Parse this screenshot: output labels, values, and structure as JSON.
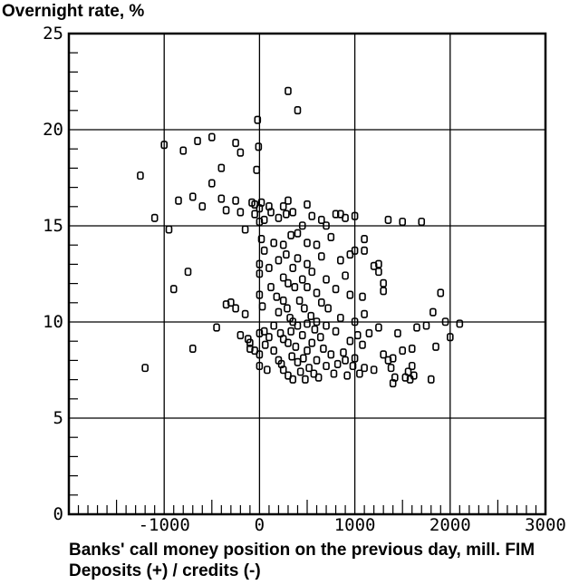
{
  "chart_data": {
    "type": "scatter",
    "ylabel": "Overnight rate, %",
    "xlabel_line1": "Banks' call money position on the previous day, mill. FIM",
    "xlabel_line2": "Deposits (+) / credits (-)",
    "xlim": [
      -2000,
      3000
    ],
    "ylim": [
      0,
      25
    ],
    "xticks": [
      -1000,
      0,
      1000,
      2000,
      3000
    ],
    "xtick_labels": [
      "-1000",
      "0",
      "1000",
      "2000",
      "3000"
    ],
    "yticks": [
      0,
      5,
      10,
      15,
      20,
      25
    ],
    "ytick_labels": [
      "0",
      "5",
      "10",
      "15",
      "20",
      "25"
    ],
    "grid": true,
    "marker": "rounded-square",
    "points": [
      [
        -1250,
        17.6
      ],
      [
        -1200,
        7.6
      ],
      [
        -1100,
        15.4
      ],
      [
        -1000,
        19.2
      ],
      [
        -950,
        14.8
      ],
      [
        -900,
        11.7
      ],
      [
        -850,
        16.3
      ],
      [
        -800,
        18.9
      ],
      [
        -750,
        12.6
      ],
      [
        -700,
        16.5
      ],
      [
        -700,
        8.6
      ],
      [
        -650,
        19.4
      ],
      [
        -600,
        16.0
      ],
      [
        -500,
        19.6
      ],
      [
        -500,
        17.2
      ],
      [
        -450,
        9.7
      ],
      [
        -400,
        18.0
      ],
      [
        -400,
        16.4
      ],
      [
        -350,
        15.8
      ],
      [
        -350,
        10.9
      ],
      [
        -300,
        11.0
      ],
      [
        -250,
        19.3
      ],
      [
        -250,
        16.3
      ],
      [
        -250,
        10.7
      ],
      [
        -200,
        18.8
      ],
      [
        -200,
        15.7
      ],
      [
        -200,
        9.3
      ],
      [
        -150,
        14.8
      ],
      [
        -150,
        10.4
      ],
      [
        -120,
        9.1
      ],
      [
        -100,
        8.9
      ],
      [
        -100,
        8.6
      ],
      [
        -80,
        16.2
      ],
      [
        -50,
        16.1
      ],
      [
        -50,
        15.6
      ],
      [
        -50,
        8.5
      ],
      [
        -30,
        17.9
      ],
      [
        -20,
        20.5
      ],
      [
        -10,
        19.1
      ],
      [
        0,
        15.9
      ],
      [
        0,
        15.2
      ],
      [
        0,
        13.0
      ],
      [
        0,
        12.5
      ],
      [
        0,
        11.4
      ],
      [
        0,
        9.4
      ],
      [
        0,
        8.3
      ],
      [
        0,
        7.7
      ],
      [
        20,
        16.2
      ],
      [
        20,
        14.3
      ],
      [
        30,
        10.8
      ],
      [
        50,
        15.3
      ],
      [
        50,
        13.7
      ],
      [
        50,
        9.5
      ],
      [
        60,
        8.8
      ],
      [
        80,
        7.5
      ],
      [
        100,
        16.0
      ],
      [
        100,
        12.8
      ],
      [
        100,
        9.2
      ],
      [
        120,
        15.7
      ],
      [
        120,
        11.8
      ],
      [
        150,
        14.1
      ],
      [
        150,
        9.8
      ],
      [
        150,
        8.5
      ],
      [
        180,
        11.3
      ],
      [
        200,
        15.4
      ],
      [
        200,
        13.2
      ],
      [
        200,
        10.5
      ],
      [
        200,
        8.0
      ],
      [
        220,
        9.4
      ],
      [
        230,
        7.8
      ],
      [
        250,
        16.0
      ],
      [
        250,
        14.0
      ],
      [
        250,
        12.3
      ],
      [
        250,
        11.1
      ],
      [
        250,
        9.1
      ],
      [
        250,
        7.5
      ],
      [
        280,
        15.6
      ],
      [
        280,
        13.5
      ],
      [
        290,
        10.7
      ],
      [
        300,
        22.0
      ],
      [
        300,
        16.3
      ],
      [
        300,
        12.0
      ],
      [
        300,
        8.9
      ],
      [
        300,
        7.2
      ],
      [
        320,
        10.2
      ],
      [
        330,
        14.5
      ],
      [
        330,
        9.5
      ],
      [
        340,
        8.2
      ],
      [
        350,
        15.7
      ],
      [
        350,
        12.8
      ],
      [
        350,
        10.0
      ],
      [
        350,
        7.0
      ],
      [
        370,
        11.8
      ],
      [
        380,
        8.7
      ],
      [
        400,
        21.0
      ],
      [
        400,
        14.6
      ],
      [
        400,
        13.3
      ],
      [
        400,
        9.8
      ],
      [
        400,
        7.9
      ],
      [
        420,
        11.1
      ],
      [
        430,
        7.4
      ],
      [
        450,
        15.0
      ],
      [
        450,
        12.2
      ],
      [
        450,
        9.3
      ],
      [
        460,
        8.1
      ],
      [
        470,
        10.7
      ],
      [
        480,
        7.0
      ],
      [
        500,
        16.1
      ],
      [
        500,
        14.1
      ],
      [
        500,
        13.0
      ],
      [
        500,
        11.8
      ],
      [
        500,
        9.9
      ],
      [
        500,
        8.5
      ],
      [
        520,
        7.6
      ],
      [
        540,
        10.3
      ],
      [
        550,
        15.5
      ],
      [
        550,
        12.6
      ],
      [
        550,
        8.9
      ],
      [
        570,
        7.3
      ],
      [
        580,
        9.6
      ],
      [
        600,
        14.0
      ],
      [
        600,
        11.5
      ],
      [
        600,
        10.0
      ],
      [
        600,
        8.0
      ],
      [
        620,
        7.1
      ],
      [
        640,
        9.2
      ],
      [
        650,
        15.3
      ],
      [
        650,
        13.4
      ],
      [
        650,
        11.0
      ],
      [
        670,
        8.6
      ],
      [
        700,
        15.0
      ],
      [
        700,
        12.2
      ],
      [
        700,
        9.8
      ],
      [
        700,
        7.7
      ],
      [
        720,
        10.7
      ],
      [
        750,
        14.4
      ],
      [
        750,
        8.3
      ],
      [
        780,
        7.3
      ],
      [
        800,
        15.6
      ],
      [
        800,
        11.7
      ],
      [
        800,
        9.5
      ],
      [
        820,
        7.8
      ],
      [
        850,
        15.6
      ],
      [
        850,
        13.2
      ],
      [
        850,
        10.2
      ],
      [
        880,
        8.4
      ],
      [
        900,
        15.4
      ],
      [
        900,
        12.4
      ],
      [
        900,
        8.0
      ],
      [
        920,
        7.2
      ],
      [
        950,
        13.5
      ],
      [
        950,
        11.4
      ],
      [
        950,
        9.0
      ],
      [
        980,
        7.7
      ],
      [
        1000,
        15.5
      ],
      [
        1000,
        13.7
      ],
      [
        1000,
        10.0
      ],
      [
        1000,
        8.1
      ],
      [
        1030,
        9.3
      ],
      [
        1050,
        7.3
      ],
      [
        1080,
        11.3
      ],
      [
        1080,
        8.8
      ],
      [
        1100,
        14.3
      ],
      [
        1100,
        13.7
      ],
      [
        1100,
        10.4
      ],
      [
        1100,
        7.6
      ],
      [
        1150,
        9.4
      ],
      [
        1200,
        12.9
      ],
      [
        1200,
        7.5
      ],
      [
        1250,
        13.0
      ],
      [
        1250,
        12.6
      ],
      [
        1250,
        9.7
      ],
      [
        1300,
        12.0
      ],
      [
        1300,
        11.6
      ],
      [
        1300,
        8.3
      ],
      [
        1350,
        8.0
      ],
      [
        1350,
        15.3
      ],
      [
        1380,
        7.6
      ],
      [
        1400,
        6.8
      ],
      [
        1400,
        8.1
      ],
      [
        1420,
        7.1
      ],
      [
        1450,
        9.4
      ],
      [
        1500,
        15.2
      ],
      [
        1500,
        8.5
      ],
      [
        1530,
        7.1
      ],
      [
        1560,
        7.4
      ],
      [
        1580,
        7.0
      ],
      [
        1600,
        8.6
      ],
      [
        1600,
        7.7
      ],
      [
        1620,
        7.2
      ],
      [
        1650,
        9.7
      ],
      [
        1700,
        15.2
      ],
      [
        1750,
        9.8
      ],
      [
        1800,
        7.0
      ],
      [
        1820,
        10.5
      ],
      [
        1850,
        8.7
      ],
      [
        1900,
        11.5
      ],
      [
        1950,
        10.0
      ],
      [
        2000,
        9.2
      ],
      [
        2100,
        9.9
      ]
    ]
  }
}
